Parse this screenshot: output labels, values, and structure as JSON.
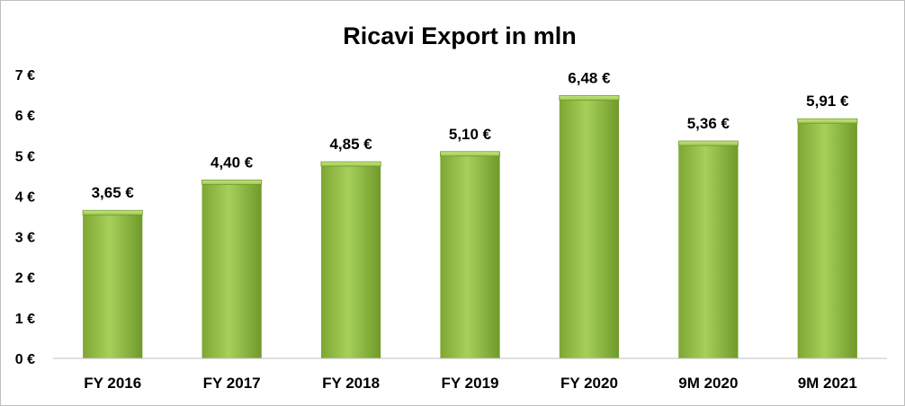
{
  "chart_data": {
    "type": "bar",
    "title": "Ricavi Export in mln",
    "categories": [
      "FY 2016",
      "FY 2017",
      "FY 2018",
      "FY 2019",
      "FY 2020",
      "9M 2020",
      "9M 2021"
    ],
    "values": [
      3.65,
      4.4,
      4.85,
      5.1,
      6.48,
      5.36,
      5.91
    ],
    "data_labels": [
      "3,65 €",
      "4,40 €",
      "4,85 €",
      "5,10 €",
      "6,48 €",
      "5,36 €",
      "5,91 €"
    ],
    "y_ticks": [
      0,
      1,
      2,
      3,
      4,
      5,
      6,
      7
    ],
    "y_tick_labels": [
      "0 €",
      "1 €",
      "2 €",
      "3 €",
      "4 €",
      "5 €",
      "6 €",
      "7 €"
    ],
    "ylim": [
      0,
      7
    ],
    "xlabel": "",
    "ylabel": "",
    "grid": false,
    "legend": "none",
    "colors": {
      "bar_light": "#a9d15a",
      "bar_mid": "#92bd3e",
      "bar_dark": "#6f9a2a",
      "axis": "#bfbfbf"
    }
  }
}
